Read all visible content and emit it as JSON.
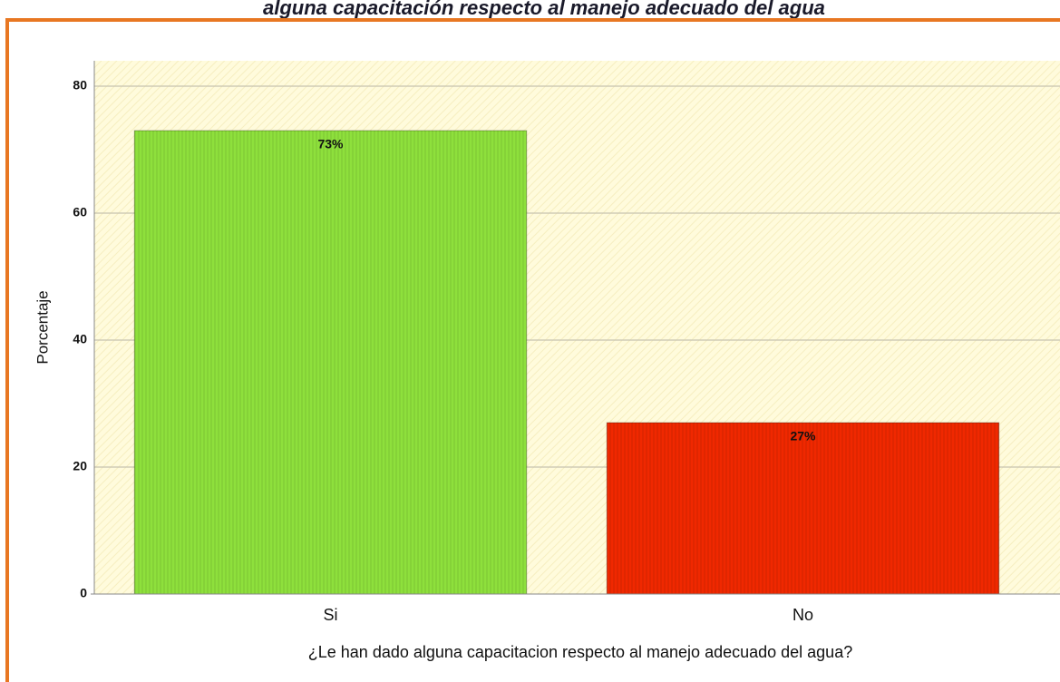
{
  "chart_data": {
    "type": "bar",
    "title": "alguna capacitación respecto al manejo adecuado del agua",
    "x_label": "¿Le han dado alguna capacitacion respecto al manejo adecuado del agua?",
    "y_label": "Porcentaje",
    "categories": [
      "Si",
      "No"
    ],
    "values": [
      73,
      27
    ],
    "value_labels": [
      "73%",
      "27%"
    ],
    "colors": [
      "#8ee03c",
      "#f02800"
    ],
    "ylim": [
      0,
      84
    ],
    "yticks": [
      0,
      20,
      40,
      60,
      80
    ],
    "grid": true
  }
}
